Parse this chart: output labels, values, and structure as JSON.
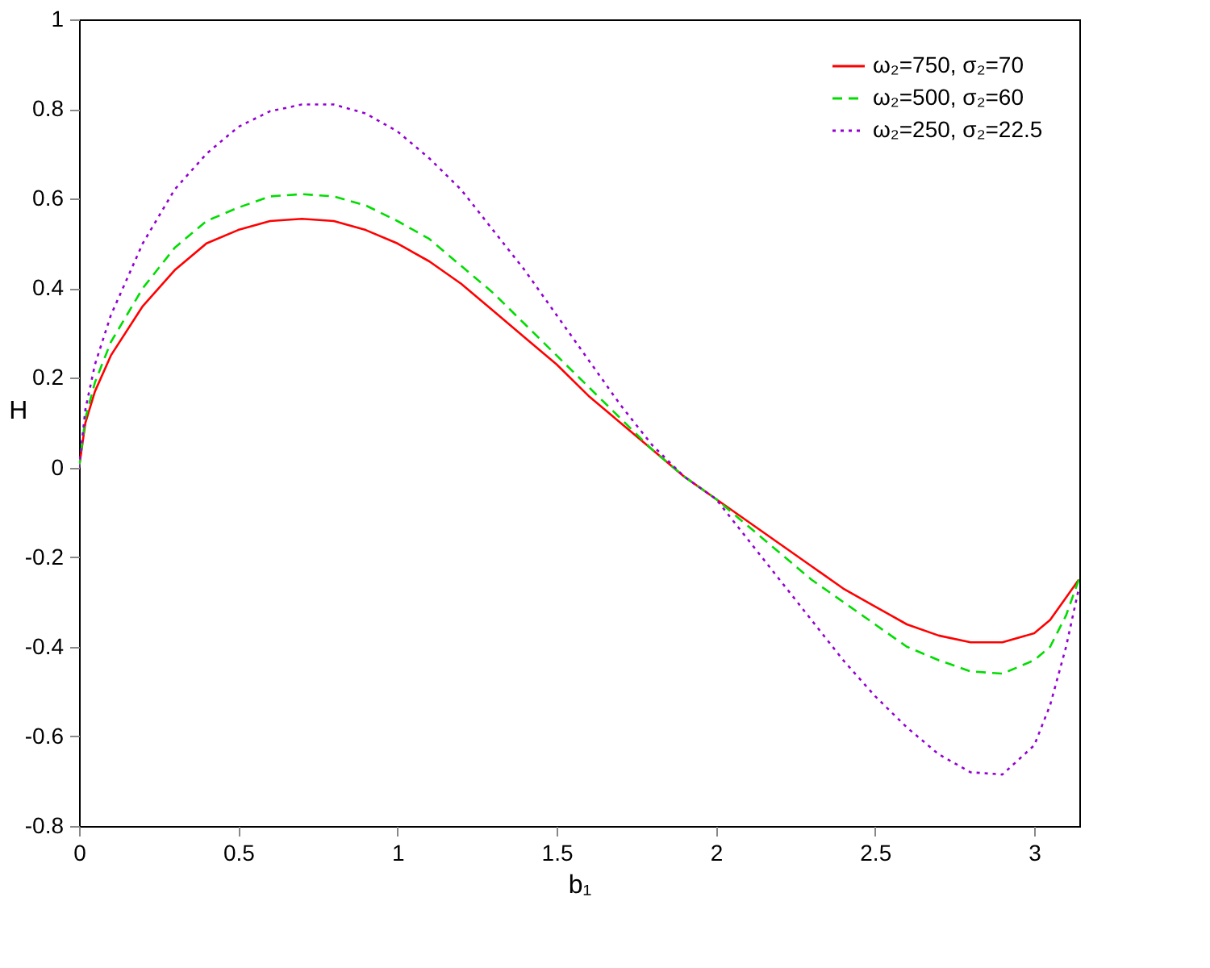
{
  "chart_data": {
    "type": "line",
    "xlabel": "b₁",
    "ylabel": "H",
    "xlim": [
      0,
      3.1416
    ],
    "ylim": [
      -0.8,
      1
    ],
    "xticks": [
      0,
      0.5,
      1,
      1.5,
      2,
      2.5,
      3
    ],
    "yticks": [
      -0.8,
      -0.6,
      -0.4,
      -0.2,
      0,
      0.2,
      0.4,
      0.6,
      0.8,
      1
    ],
    "grid": false,
    "legend": "top right",
    "x": [
      0,
      0.02,
      0.05,
      0.1,
      0.2,
      0.3,
      0.4,
      0.5,
      0.6,
      0.7,
      0.8,
      0.9,
      1.0,
      1.1,
      1.2,
      1.3,
      1.4,
      1.5,
      1.6,
      1.7,
      1.8,
      1.9,
      2.0,
      2.1,
      2.2,
      2.3,
      2.4,
      2.5,
      2.6,
      2.7,
      2.8,
      2.9,
      3.0,
      3.05,
      3.1,
      3.14
    ],
    "series": [
      {
        "name": "ω₂=750,  σ₂=70",
        "color": "#ff0000",
        "line_style": "solid",
        "values": [
          0,
          0.1,
          0.17,
          0.25,
          0.36,
          0.44,
          0.5,
          0.53,
          0.55,
          0.555,
          0.55,
          0.53,
          0.5,
          0.46,
          0.41,
          0.35,
          0.29,
          0.23,
          0.16,
          0.1,
          0.04,
          -0.02,
          -0.07,
          -0.12,
          -0.17,
          -0.22,
          -0.27,
          -0.31,
          -0.35,
          -0.375,
          -0.39,
          -0.39,
          -0.37,
          -0.34,
          -0.29,
          -0.25
        ]
      },
      {
        "name": "ω₂=500,  σ₂=60",
        "color": "#00dd00",
        "line_style": "dashed",
        "values": [
          0,
          0.11,
          0.19,
          0.28,
          0.4,
          0.49,
          0.55,
          0.58,
          0.605,
          0.61,
          0.605,
          0.585,
          0.55,
          0.51,
          0.45,
          0.39,
          0.32,
          0.25,
          0.18,
          0.11,
          0.04,
          -0.02,
          -0.07,
          -0.13,
          -0.19,
          -0.25,
          -0.3,
          -0.35,
          -0.4,
          -0.43,
          -0.455,
          -0.46,
          -0.43,
          -0.4,
          -0.33,
          -0.25
        ]
      },
      {
        "name": "ω₂=250,  σ₂=22.5",
        "color": "#9400d3",
        "line_style": "dotted",
        "values": [
          0,
          0.13,
          0.23,
          0.34,
          0.5,
          0.62,
          0.7,
          0.76,
          0.795,
          0.81,
          0.81,
          0.79,
          0.75,
          0.69,
          0.62,
          0.53,
          0.44,
          0.34,
          0.24,
          0.14,
          0.05,
          -0.02,
          -0.07,
          -0.16,
          -0.25,
          -0.34,
          -0.43,
          -0.51,
          -0.58,
          -0.64,
          -0.68,
          -0.685,
          -0.62,
          -0.53,
          -0.4,
          -0.27
        ]
      }
    ]
  }
}
